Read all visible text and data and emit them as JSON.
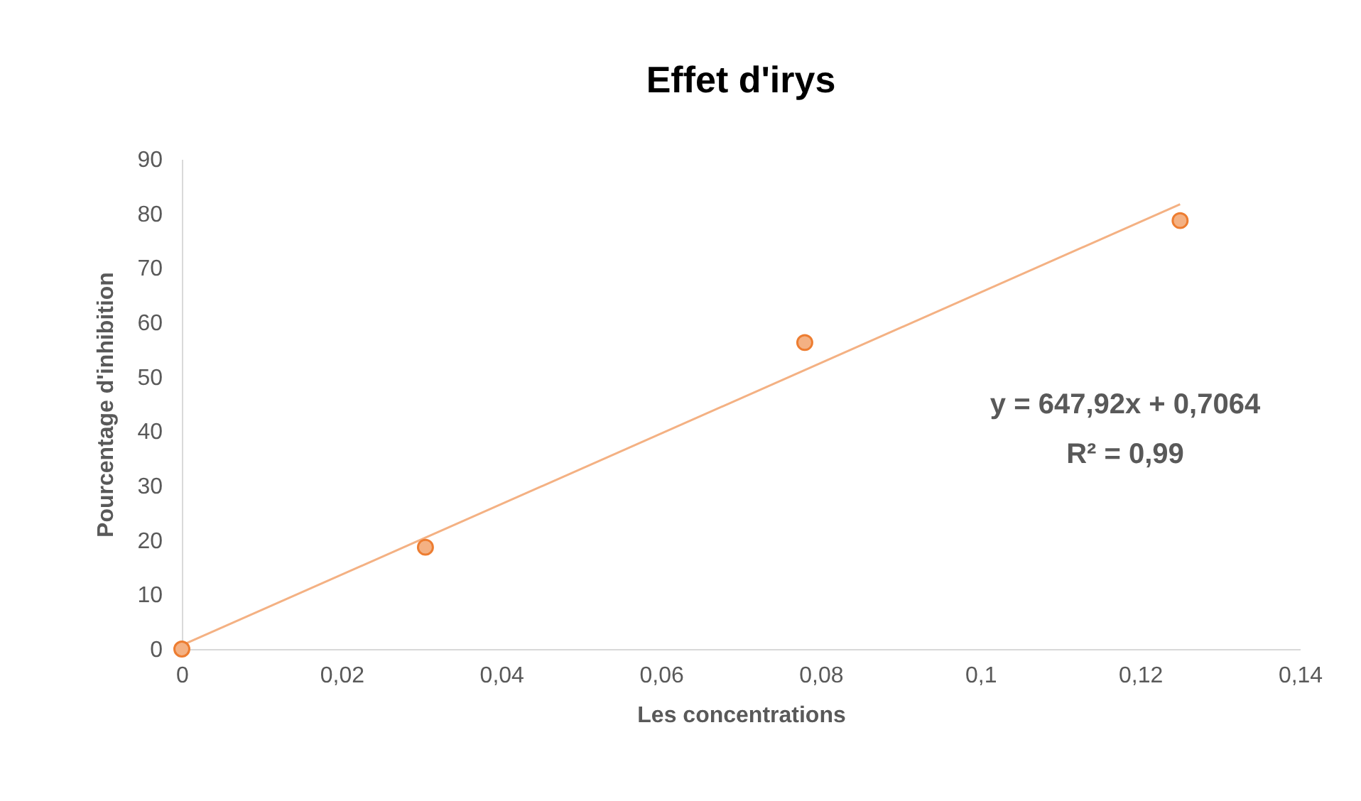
{
  "chart_data": {
    "type": "scatter",
    "title": "Effet  d'irys",
    "xlabel": "Les concentrations",
    "ylabel": "Pourcentage d'inhibition",
    "x": [
      0,
      0.0305,
      0.078,
      0.125
    ],
    "series": [
      {
        "color": "#f4b183",
        "marker": "circle",
        "values": [
          0,
          18.7,
          56.3,
          78.7
        ]
      },
      {
        "type": "line",
        "color": "#f4b183",
        "marker": "none",
        "x": [
          0,
          0.125
        ],
        "values": [
          0.7,
          81.7
        ]
      }
    ],
    "xlim": [
      0,
      0.14
    ],
    "xticks": [
      {
        "value": 0,
        "label": "0"
      },
      {
        "value": 0.02,
        "label": "0,02"
      },
      {
        "value": 0.04,
        "label": "0,04"
      },
      {
        "value": 0.06,
        "label": "0,06"
      },
      {
        "value": 0.08,
        "label": "0,08"
      },
      {
        "value": 0.1,
        "label": "0,1"
      },
      {
        "value": 0.12,
        "label": "0,12"
      },
      {
        "value": 0.14,
        "label": "0,14"
      }
    ],
    "ylim": [
      0,
      90
    ],
    "yticks": [
      0,
      10,
      20,
      30,
      40,
      50,
      60,
      70,
      80,
      90
    ],
    "annotations": [
      "y = 647,92x + 0,7064",
      "R² = 0,99"
    ]
  }
}
